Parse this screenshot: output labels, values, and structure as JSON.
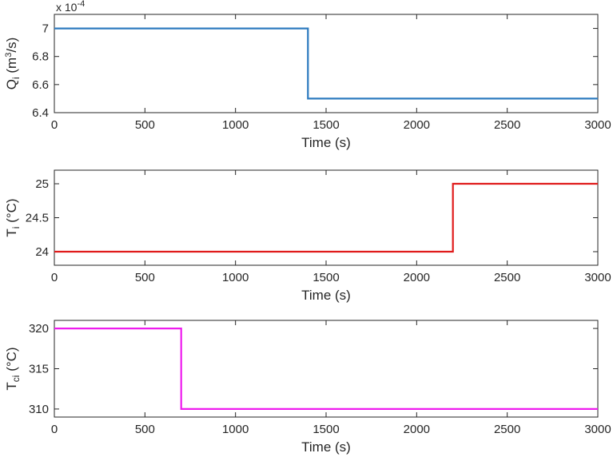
{
  "chart_data": [
    {
      "type": "line",
      "xlabel": "Time (s)",
      "ylabel": {
        "main": "Q",
        "sub": "i",
        "unit_open": " (m",
        "unit_sup": "3",
        "unit_close": "/s)"
      },
      "exponent_label": {
        "base": "x 10",
        "power": "-4"
      },
      "xlim": [
        0,
        3000
      ],
      "ylim": [
        6.4,
        7.1
      ],
      "xticks": [
        0,
        500,
        1000,
        1500,
        2000,
        2500,
        3000
      ],
      "xtick_labels": [
        "0",
        "500",
        "1000",
        "1500",
        "2000",
        "2500",
        "3000"
      ],
      "yticks": [
        6.4,
        6.6,
        6.8,
        7.0
      ],
      "ytick_labels": [
        "6.4",
        "6.6",
        "6.8",
        "7"
      ],
      "grid": false,
      "series": [
        {
          "color": "#2e7bbf",
          "x": [
            0,
            1400,
            1400,
            3000
          ],
          "y": [
            7.0,
            7.0,
            6.5,
            6.5
          ]
        }
      ]
    },
    {
      "type": "line",
      "xlabel": "Time (s)",
      "ylabel": {
        "main": "T",
        "sub": "i",
        "unit_open": " (°C)",
        "unit_sup": "",
        "unit_close": ""
      },
      "xlim": [
        0,
        3000
      ],
      "ylim": [
        23.8,
        25.2
      ],
      "xticks": [
        0,
        500,
        1000,
        1500,
        2000,
        2500,
        3000
      ],
      "xtick_labels": [
        "0",
        "500",
        "1000",
        "1500",
        "2000",
        "2500",
        "3000"
      ],
      "yticks": [
        24,
        24.5,
        25
      ],
      "ytick_labels": [
        "24",
        "24.5",
        "25"
      ],
      "grid": false,
      "series": [
        {
          "color": "#e01b1b",
          "x": [
            0,
            2200,
            2200,
            3000
          ],
          "y": [
            24,
            24,
            25,
            25
          ]
        }
      ]
    },
    {
      "type": "line",
      "xlabel": "Time (s)",
      "ylabel": {
        "main": "T",
        "sub": "ci",
        "unit_open": " (°C)",
        "unit_sup": "",
        "unit_close": ""
      },
      "xlim": [
        0,
        3000
      ],
      "ylim": [
        309,
        321
      ],
      "xticks": [
        0,
        500,
        1000,
        1500,
        2000,
        2500,
        3000
      ],
      "xtick_labels": [
        "0",
        "500",
        "1000",
        "1500",
        "2000",
        "2500",
        "3000"
      ],
      "yticks": [
        310,
        315,
        320
      ],
      "ytick_labels": [
        "310",
        "315",
        "320"
      ],
      "grid": false,
      "series": [
        {
          "color": "#ee1cee",
          "x": [
            0,
            700,
            700,
            3000
          ],
          "y": [
            320,
            320,
            310,
            310
          ]
        }
      ]
    }
  ]
}
